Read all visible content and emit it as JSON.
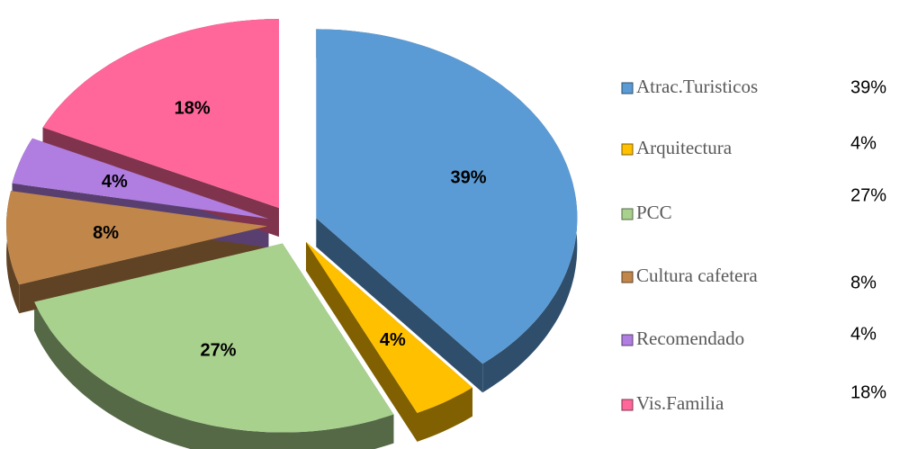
{
  "chart_data": {
    "type": "pie",
    "categories": [
      "Atrac.Turisticos",
      "Arquitectura",
      "PCC",
      "Cultura cafetera",
      "Recomendado",
      "Vis.Familia"
    ],
    "values": [
      39,
      4,
      27,
      8,
      4,
      18
    ],
    "value_labels": [
      "39%",
      "4%",
      "27%",
      "8%",
      "4%",
      "18%"
    ],
    "colors": [
      "#5b9bd5",
      "#ffc000",
      "#a9d18e",
      "#c0864a",
      "#b07de0",
      "#ff6699"
    ],
    "legend": "right"
  }
}
